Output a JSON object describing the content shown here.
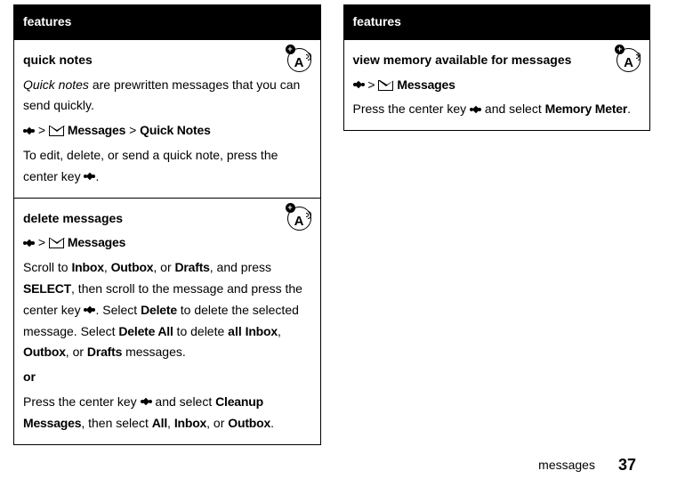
{
  "left": {
    "header": "features",
    "s1": {
      "title": "quick notes",
      "p1a": "Quick notes",
      "p1b": " are prewritten messages that you can send quickly.",
      "nav1": " > ",
      "msgs": "Messages",
      "nav2": " > ",
      "qn": "Quick Notes",
      "p2a": "To edit, delete, or send a quick note, press the center key ",
      "p2b": "."
    },
    "s2": {
      "title": "delete messages",
      "nav1": " > ",
      "msgs": "Messages",
      "p1a": "Scroll to ",
      "inbox": "Inbox",
      "c1": ", ",
      "outbox": "Outbox",
      "c2": ", or ",
      "drafts": "Drafts",
      "p1b": ", and press ",
      "select": "SELECT",
      "p1c": ", then scroll to the message and press the center key ",
      "p1d": ". Select ",
      "delete": "Delete",
      "p1e": " to delete the selected message. Select ",
      "deleteall": "Delete All",
      "p1f": " to delete ",
      "all": "all",
      "sp": " ",
      "inbox2": "Inbox",
      "c3": ", ",
      "outbox2": "Outbox",
      "c4": ", or ",
      "drafts2": "Drafts",
      "p1g": " messages.",
      "or": "or",
      "p2a": "Press the center key ",
      "p2b": " and select ",
      "cleanup": "Cleanup Messages",
      "p2c": ", then select ",
      "all2": "All",
      "c5": ", ",
      "inbox3": "Inbox",
      "c6": ", or ",
      "outbox3": "Outbox",
      "p2d": "."
    }
  },
  "right": {
    "header": "features",
    "s1": {
      "title": "view memory available for messages",
      "nav1": " > ",
      "msgs": "Messages",
      "p1a": "Press the center key ",
      "p1b": " and select ",
      "mm": "Memory Meter",
      "p1c": "."
    }
  },
  "footer": {
    "label": "messages",
    "page": "37"
  }
}
